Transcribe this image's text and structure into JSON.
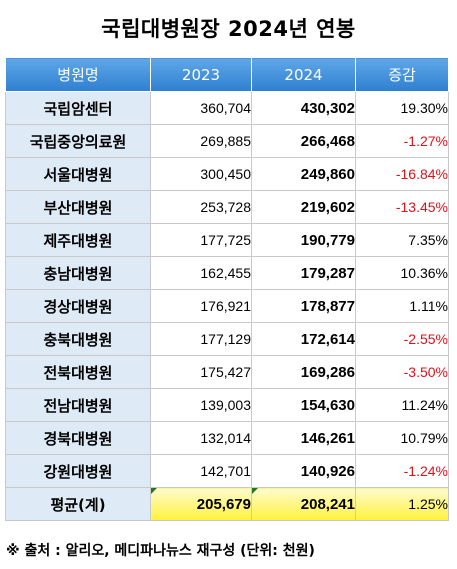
{
  "title": "국립대병원장 2024년 연봉",
  "table": {
    "headers": [
      "병원명",
      "2023",
      "2024",
      "증감"
    ],
    "rows": [
      {
        "name": "국립암센터",
        "y2023": "360,704",
        "y2024": "430,302",
        "change": "19.30%",
        "negative": false
      },
      {
        "name": "국립중앙의료원",
        "y2023": "269,885",
        "y2024": "266,468",
        "change": "-1.27%",
        "negative": true
      },
      {
        "name": "서울대병원",
        "y2023": "300,450",
        "y2024": "249,860",
        "change": "-16.84%",
        "negative": true
      },
      {
        "name": "부산대병원",
        "y2023": "253,728",
        "y2024": "219,602",
        "change": "-13.45%",
        "negative": true
      },
      {
        "name": "제주대병원",
        "y2023": "177,725",
        "y2024": "190,779",
        "change": "7.35%",
        "negative": false
      },
      {
        "name": "충남대병원",
        "y2023": "162,455",
        "y2024": "179,287",
        "change": "10.36%",
        "negative": false
      },
      {
        "name": "경상대병원",
        "y2023": "176,921",
        "y2024": "178,877",
        "change": "1.11%",
        "negative": false
      },
      {
        "name": "충북대병원",
        "y2023": "177,129",
        "y2024": "172,614",
        "change": "-2.55%",
        "negative": true
      },
      {
        "name": "전북대병원",
        "y2023": "175,427",
        "y2024": "169,286",
        "change": "-3.50%",
        "negative": true
      },
      {
        "name": "전남대병원",
        "y2023": "139,003",
        "y2024": "154,630",
        "change": "11.24%",
        "negative": false
      },
      {
        "name": "경북대병원",
        "y2023": "132,014",
        "y2024": "146,261",
        "change": "10.79%",
        "negative": false
      },
      {
        "name": "강원대병원",
        "y2023": "142,701",
        "y2024": "140,926",
        "change": "-1.24%",
        "negative": true
      }
    ],
    "average": {
      "name": "평균(계)",
      "y2023": "205,679",
      "y2024": "208,241",
      "change": "1.25%"
    }
  },
  "note": "※ 출처 : 알리오, 메디파나뉴스 재구성 (단위: 천원)",
  "colors": {
    "header_bg": "#3a8ad8",
    "name_bg": "#deebf7",
    "negative": "#e0101a",
    "average_bg": "#fff23a"
  }
}
